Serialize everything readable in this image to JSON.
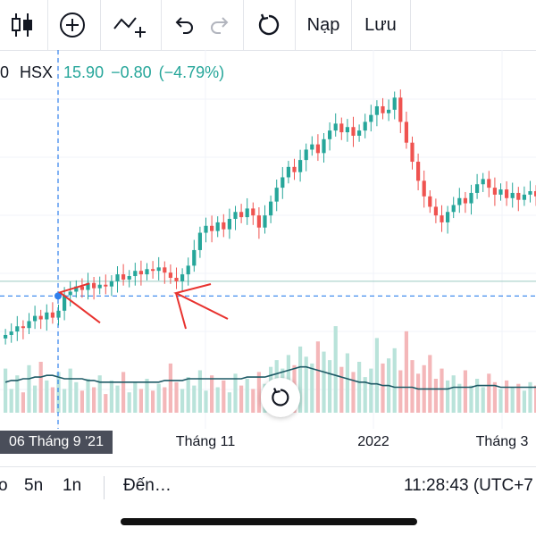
{
  "toolbar": {
    "items": [
      {
        "name": "chart-type-icon"
      },
      {
        "name": "add-indicator-icon"
      },
      {
        "name": "drawing-tool-icon"
      },
      {
        "name": "undo-icon"
      },
      {
        "name": "redo-icon"
      },
      {
        "name": "reload-icon"
      }
    ],
    "load_label": "Nạp",
    "save_label": "Lưu"
  },
  "legend": {
    "prefix": "0",
    "symbol": "HSX",
    "price": "15.90",
    "change": "−0.80",
    "change_pct": "(−4.79%)"
  },
  "xaxis": {
    "crosshair_date": "06 Tháng 9 '21",
    "labels": [
      "Tháng 11",
      "2022",
      "Tháng 3"
    ]
  },
  "bottom_bar": {
    "ranges": [
      "o",
      "5n",
      "1n"
    ],
    "goto_label": "Đến…",
    "clock": "11:28:43 (UTC+7"
  },
  "colors": {
    "up": "#26a69a",
    "down": "#ef5350",
    "volume_up": "#b9e3da",
    "volume_down": "#f4b7b9",
    "ma_line": "#1e5a66",
    "crosshair": "#2f80ed",
    "annotation": "#e8322e"
  },
  "chart_data": {
    "type": "candlestick",
    "title": "",
    "xlabel": "",
    "ylabel": "",
    "closes": [
      14.1,
      14.3,
      14.6,
      14.5,
      14.9,
      15.2,
      15.0,
      15.4,
      15.1,
      15.5,
      16.4,
      16.6,
      16.9,
      16.7,
      17.1,
      16.8,
      17.0,
      16.9,
      17.2,
      17.6,
      17.3,
      17.5,
      17.8,
      17.6,
      17.9,
      17.8,
      18.0,
      17.7,
      17.4,
      17.2,
      17.6,
      18.1,
      19.0,
      20.0,
      20.4,
      20.1,
      20.6,
      20.2,
      20.8,
      21.2,
      20.9,
      21.4,
      21.0,
      20.3,
      21.0,
      21.8,
      22.6,
      23.2,
      23.8,
      23.5,
      24.2,
      24.8,
      25.1,
      24.6,
      25.4,
      25.9,
      26.3,
      25.8,
      26.1,
      25.6,
      25.9,
      26.4,
      26.8,
      27.3,
      26.9,
      27.1,
      27.8,
      26.4,
      25.2,
      24.1,
      23.0,
      22.1,
      21.5,
      21.0,
      20.6,
      21.2,
      21.6,
      22.0,
      21.7,
      22.3,
      22.8,
      23.1,
      22.6,
      22.2,
      22.5,
      22.0,
      22.3,
      21.9,
      22.2,
      22.4,
      22.1
    ],
    "volume_ma": [
      1.8,
      1.9,
      1.9,
      2.0,
      2.0,
      2.1,
      2.1,
      2.2,
      2.2,
      2.1,
      2.0,
      2.0,
      2.0,
      2.0,
      1.9,
      1.9,
      1.8,
      1.8,
      1.8,
      1.8,
      1.8,
      1.8,
      1.8,
      1.8,
      1.8,
      1.8,
      1.8,
      1.9,
      1.9,
      1.9,
      1.9,
      2.0,
      2.0,
      2.0,
      2.0,
      2.0,
      2.0,
      2.0,
      2.0,
      2.0,
      2.0,
      2.1,
      2.1,
      2.1,
      2.1,
      2.2,
      2.3,
      2.4,
      2.5,
      2.6,
      2.7,
      2.7,
      2.6,
      2.5,
      2.4,
      2.3,
      2.2,
      2.1,
      2.0,
      1.9,
      1.8,
      1.8,
      1.7,
      1.7,
      1.6,
      1.6,
      1.5,
      1.5,
      1.5,
      1.5,
      1.4,
      1.4,
      1.4,
      1.4,
      1.4,
      1.4,
      1.5,
      1.5,
      1.5,
      1.5,
      1.6,
      1.6,
      1.6,
      1.6,
      1.5,
      1.5,
      1.5,
      1.5,
      1.5,
      1.5,
      1.5
    ],
    "volumes": [
      2.6,
      1.4,
      2.2,
      1.2,
      2.8,
      1.6,
      3.0,
      1.9,
      1.5,
      2.4,
      1.4,
      2.6,
      1.8,
      1.3,
      2.0,
      1.5,
      2.2,
      1.1,
      1.9,
      1.6,
      2.4,
      1.2,
      1.8,
      1.4,
      2.0,
      1.3,
      1.7,
      1.5,
      2.9,
      1.8,
      1.4,
      2.1,
      1.6,
      2.5,
      1.3,
      2.2,
      1.5,
      1.9,
      1.2,
      2.3,
      1.6,
      2.0,
      1.4,
      2.4,
      1.7,
      2.7,
      3.1,
      2.6,
      3.4,
      2.8,
      3.9,
      3.3,
      2.9,
      4.2,
      3.6,
      3.1,
      5.1,
      2.7,
      3.5,
      2.4,
      3.0,
      2.1,
      2.6,
      4.4,
      2.9,
      3.2,
      3.8,
      2.5,
      4.8,
      3.1,
      2.3,
      2.8,
      3.4,
      2.0,
      2.6,
      1.9,
      2.2,
      1.7,
      2.5,
      1.6,
      2.0,
      1.5,
      2.3,
      1.8,
      1.4,
      1.9,
      1.5,
      1.7,
      1.3,
      1.8,
      1.6
    ],
    "crosshair_price": 16.35,
    "reference_price": 17.2
  }
}
